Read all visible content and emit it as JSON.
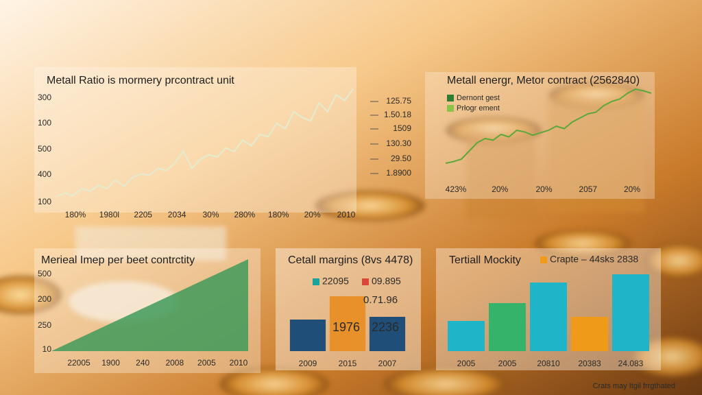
{
  "chart_data": [
    {
      "type": "line",
      "title": "Metall Ratio is mormery prcontract unit",
      "y_labels": [
        "300",
        "100",
        "500",
        "400",
        "100"
      ],
      "x_labels": [
        "180%",
        "1980l",
        "2205",
        "2034",
        "30%",
        "280%",
        "180%",
        "20%",
        "2010"
      ],
      "side_labels": [
        "125.75",
        "1.50.18",
        "1509",
        "130.30",
        "29.50",
        "1.8900"
      ],
      "values": [
        5,
        8,
        6,
        12,
        10,
        15,
        12,
        20,
        14,
        22,
        25,
        24,
        30,
        28,
        35,
        45,
        30,
        38,
        42,
        40,
        48,
        45,
        55,
        50,
        60,
        58,
        70,
        65,
        80,
        75,
        72,
        88,
        80,
        95,
        90,
        100
      ],
      "ylim": [
        0,
        100
      ],
      "color": "#e4ecd0"
    },
    {
      "type": "line",
      "title": "Metall energr, Metor contract (2562840)",
      "legend": [
        {
          "label": "Dernont gest",
          "color": "#2f7d32"
        },
        {
          "label": "Prłogr ement",
          "color": "#8bc34a"
        }
      ],
      "x_labels": [
        "423%",
        "20%",
        "20%",
        "2057",
        "20%"
      ],
      "values": [
        10,
        12,
        15,
        25,
        35,
        40,
        38,
        45,
        42,
        50,
        48,
        44,
        47,
        50,
        55,
        52,
        60,
        65,
        70,
        72,
        80,
        85,
        88,
        95,
        100,
        98,
        95
      ],
      "ylim": [
        0,
        100
      ],
      "color": "#5aa83a"
    },
    {
      "type": "area",
      "title": "Merieal Imep per beet contrctity",
      "y_labels": [
        "500",
        "200",
        "250",
        "10"
      ],
      "x_labels": [
        "22005",
        "1900",
        "240",
        "2008",
        "2005",
        "2010"
      ],
      "values": [
        0,
        100
      ],
      "ylim": [
        0,
        100
      ],
      "color": "#3f9a5a"
    },
    {
      "type": "bar",
      "title": "Cetall margins (8vs 4478)",
      "legend": [
        {
          "label": "22095",
          "color": "#1aa39a"
        },
        {
          "label": "09.895",
          "color": "#d9473a"
        }
      ],
      "categories": [
        "2009",
        "2015",
        "2007"
      ],
      "values": [
        46,
        80,
        50
      ],
      "colors": [
        "#1f4e79",
        "#e8912a",
        "#1f4e79"
      ],
      "ylim": [
        0,
        100
      ],
      "annotations": [
        "0.71.96",
        "1976",
        "2236"
      ]
    },
    {
      "type": "bar",
      "title": "Tertiall Mockity",
      "legend": [
        {
          "label": "Crapte – 44sks 2838",
          "color": "#f09a1a"
        }
      ],
      "categories": [
        "2005",
        "2005",
        "20810",
        "20383",
        "24.083"
      ],
      "values": [
        44,
        70,
        100,
        50,
        112
      ],
      "colors": [
        "#1fb5c9",
        "#36b36a",
        "#1fb5c9",
        "#f09a1a",
        "#1fb5c9"
      ],
      "ylim": [
        0,
        120
      ]
    }
  ],
  "footer": "Crats may Itgil frrgthated"
}
